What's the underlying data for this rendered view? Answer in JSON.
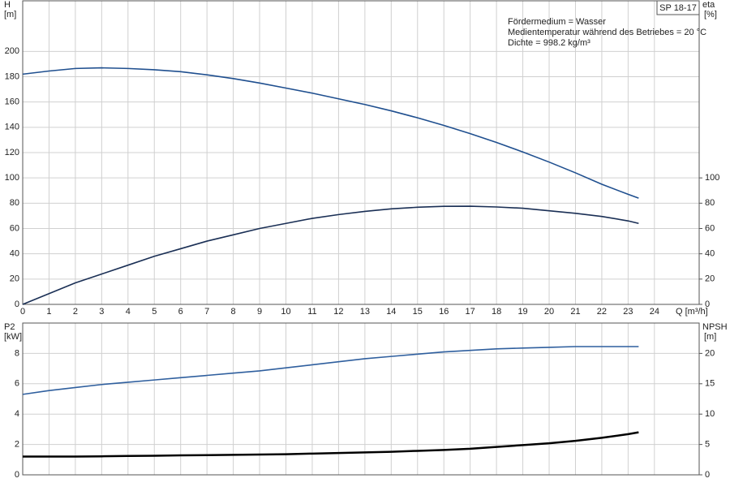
{
  "badge": "SP 18-17",
  "chart_data": [
    {
      "type": "line",
      "annotations": [
        "Fördermedium = Wasser",
        "Medientemperatur während des Betriebes = 20 °C",
        "Dichte = 998.2 kg/m³"
      ],
      "ylabel": "H",
      "yunit": "[m]",
      "y2label": "eta",
      "y2unit": "[%]",
      "xlabel": "Q [m³/h]",
      "x": [
        0,
        1,
        2,
        3,
        4,
        5,
        6,
        7,
        8,
        9,
        10,
        11,
        12,
        13,
        14,
        15,
        16,
        17,
        18,
        19,
        20,
        21,
        22,
        23,
        23.4
      ],
      "series": [
        {
          "color": "#1f4f8f",
          "axis": "y",
          "values": [
            182,
            184.5,
            186.5,
            187,
            186.5,
            185.5,
            184,
            181.5,
            178.5,
            175,
            171,
            167,
            162.5,
            158,
            153,
            147.5,
            141.5,
            135,
            128,
            120.5,
            112.5,
            104,
            95,
            87,
            84
          ]
        },
        {
          "color": "#1a2f55",
          "axis": "y2",
          "values": [
            0,
            8.5,
            17,
            24,
            31,
            38,
            44,
            50,
            55,
            60,
            64,
            68,
            71,
            73.5,
            75.5,
            76.8,
            77.5,
            77.6,
            77,
            76,
            74,
            72,
            69.5,
            66,
            64
          ]
        }
      ],
      "xlim": [
        0,
        25.7
      ],
      "xticks": [
        0,
        1,
        2,
        3,
        4,
        5,
        6,
        7,
        8,
        9,
        10,
        11,
        12,
        13,
        14,
        15,
        16,
        17,
        18,
        19,
        20,
        21,
        22,
        23,
        24
      ],
      "ylim": [
        0,
        240
      ],
      "yticks": [
        0,
        20,
        40,
        60,
        80,
        100,
        120,
        140,
        160,
        180,
        200
      ],
      "y2lim": [
        0,
        240
      ],
      "y2ticks": [
        0,
        20,
        40,
        60,
        80,
        100
      ],
      "grid": true,
      "show_x_labels": true
    },
    {
      "type": "line",
      "ylabel": "P2",
      "yunit": "[kW]",
      "y2label": "NPSH",
      "y2unit": "[m]",
      "x": [
        0,
        1,
        2,
        3,
        4,
        5,
        6,
        7,
        8,
        9,
        10,
        11,
        12,
        13,
        14,
        15,
        16,
        17,
        18,
        19,
        20,
        21,
        22,
        23,
        23.4
      ],
      "series": [
        {
          "color": "#2f5f9e",
          "axis": "y",
          "values": [
            5.3,
            5.55,
            5.75,
            5.95,
            6.1,
            6.25,
            6.4,
            6.55,
            6.7,
            6.85,
            7.05,
            7.25,
            7.45,
            7.65,
            7.8,
            7.95,
            8.1,
            8.2,
            8.3,
            8.35,
            8.4,
            8.45,
            8.45,
            8.45,
            8.45
          ]
        },
        {
          "color": "#000000",
          "axis": "y2",
          "values": [
            3,
            3,
            3,
            3.05,
            3.1,
            3.15,
            3.2,
            3.25,
            3.3,
            3.35,
            3.4,
            3.5,
            3.6,
            3.7,
            3.8,
            3.95,
            4.1,
            4.3,
            4.6,
            4.9,
            5.2,
            5.6,
            6.1,
            6.7,
            7.0
          ]
        }
      ],
      "xlim": [
        0,
        25.7
      ],
      "xticks": [
        0,
        1,
        2,
        3,
        4,
        5,
        6,
        7,
        8,
        9,
        10,
        11,
        12,
        13,
        14,
        15,
        16,
        17,
        18,
        19,
        20,
        21,
        22,
        23,
        24
      ],
      "ylim": [
        0,
        10
      ],
      "yticks": [
        0,
        2,
        4,
        6,
        8
      ],
      "y2lim": [
        0,
        25
      ],
      "y2ticks": [
        0,
        5,
        10,
        15,
        20
      ],
      "grid": true,
      "show_x_labels": false
    }
  ]
}
